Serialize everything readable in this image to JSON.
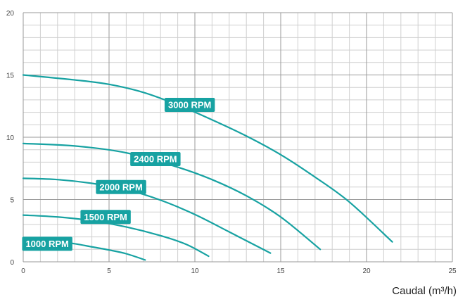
{
  "chart_data": {
    "type": "line",
    "title": "",
    "xlabel": "Caudal (m³/h)",
    "ylabel": "",
    "xlim": [
      0,
      25
    ],
    "ylim": [
      0,
      20
    ],
    "x_ticks": [
      0,
      5,
      10,
      15,
      20,
      25
    ],
    "y_ticks": [
      0,
      5,
      10,
      15,
      20
    ],
    "x_minor_step": 1,
    "y_minor_step": 1,
    "grid": true,
    "line_color": "#17a2a2",
    "label_bg_color": "#17a2a2",
    "series": [
      {
        "name": "1000 RPM",
        "label_at": [
          1.4,
          1.45
        ],
        "points": [
          [
            0,
            1.75
          ],
          [
            1,
            1.7
          ],
          [
            2,
            1.6
          ],
          [
            3,
            1.45
          ],
          [
            4,
            1.2
          ],
          [
            5,
            0.95
          ],
          [
            6,
            0.65
          ],
          [
            7.1,
            0.15
          ]
        ]
      },
      {
        "name": "1500 RPM",
        "label_at": [
          4.8,
          3.6
        ],
        "points": [
          [
            0,
            3.75
          ],
          [
            2,
            3.6
          ],
          [
            4,
            3.3
          ],
          [
            6,
            2.8
          ],
          [
            8,
            2.1
          ],
          [
            9.5,
            1.4
          ],
          [
            10.8,
            0.45
          ]
        ]
      },
      {
        "name": "2000 RPM",
        "label_at": [
          5.7,
          6.0
        ],
        "points": [
          [
            0,
            6.7
          ],
          [
            2,
            6.6
          ],
          [
            4,
            6.3
          ],
          [
            6,
            5.8
          ],
          [
            8,
            4.95
          ],
          [
            10,
            3.8
          ],
          [
            12,
            2.4
          ],
          [
            14.4,
            0.7
          ]
        ]
      },
      {
        "name": "2400 RPM",
        "label_at": [
          7.7,
          8.25
        ],
        "points": [
          [
            0,
            9.5
          ],
          [
            3,
            9.3
          ],
          [
            6,
            8.75
          ],
          [
            9,
            7.6
          ],
          [
            11,
            6.6
          ],
          [
            13,
            5.3
          ],
          [
            15,
            3.6
          ],
          [
            17.3,
            1.0
          ]
        ]
      },
      {
        "name": "3000 RPM",
        "label_at": [
          9.7,
          12.6
        ],
        "points": [
          [
            0,
            15.0
          ],
          [
            3,
            14.6
          ],
          [
            5,
            14.25
          ],
          [
            7,
            13.6
          ],
          [
            9,
            12.6
          ],
          [
            11,
            11.4
          ],
          [
            13,
            10.1
          ],
          [
            15,
            8.6
          ],
          [
            17,
            6.8
          ],
          [
            19,
            4.8
          ],
          [
            21.5,
            1.6
          ]
        ]
      }
    ]
  }
}
